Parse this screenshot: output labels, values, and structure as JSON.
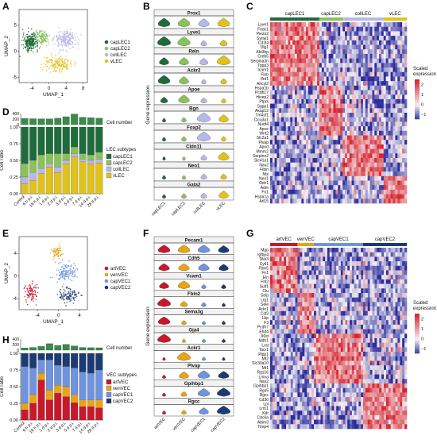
{
  "panels": {
    "A": "A",
    "B": "B",
    "C": "C",
    "D": "D",
    "E": "E",
    "F": "F",
    "G": "G",
    "H": "H"
  },
  "colors": {
    "capLEC1": "#1e6b3c",
    "capLEC2": "#8ac25a",
    "collLEC": "#b8b8e6",
    "vLEC": "#e0c21c",
    "artVEC": "#c8182b",
    "venVEC": "#e8a317",
    "capVEC1": "#6f93de",
    "capVEC2": "#1c3b73",
    "heat_low": "#2c2d9c",
    "heat_mid": "#f2f0f6",
    "heat_high": "#d8262f"
  },
  "chart_data": [
    {
      "panel": "A",
      "type": "scatter",
      "xlabel": "UMAP_1",
      "ylabel": "UMAP_2",
      "xticks": [
        "-4",
        "0",
        "4",
        "8"
      ],
      "yticks": [
        "-5",
        "0",
        "5"
      ],
      "legend": [
        "capLEC1",
        "capLEC2",
        "collLEC",
        "vLEC"
      ],
      "clusters": [
        {
          "name": "capLEC1",
          "center": [
            -4.3,
            1.8
          ],
          "spread": [
            1.8,
            1.6
          ],
          "n": 260
        },
        {
          "name": "capLEC2",
          "center": [
            -1.5,
            2.6
          ],
          "spread": [
            1.6,
            1.3
          ],
          "n": 120
        },
        {
          "name": "collLEC",
          "center": [
            4.0,
            2.2
          ],
          "spread": [
            2.6,
            2.0
          ],
          "n": 220
        },
        {
          "name": "vLEC",
          "center": [
            2.0,
            -2.4
          ],
          "spread": [
            3.2,
            1.4
          ],
          "n": 160
        }
      ]
    },
    {
      "panel": "B",
      "type": "violin",
      "ylabel": "Gene expression",
      "genes": [
        "Prox1",
        "Lyve1",
        "Reln",
        "Ackr2",
        "Apoe",
        "Bgn",
        "Foxp2",
        "Cldn11",
        "Neo1",
        "Gata2"
      ],
      "categories": [
        "capLEC1",
        "capLEC2",
        "collLEC",
        "vLEC"
      ],
      "values": [
        [
          0.8,
          0.8,
          0.7,
          0.8
        ],
        [
          0.9,
          0.85,
          0.3,
          0.4
        ],
        [
          0.6,
          0.6,
          0.5,
          0.9
        ],
        [
          0.8,
          0.6,
          0.2,
          0.3
        ],
        [
          0.4,
          0.7,
          0.3,
          0.2
        ],
        [
          0.1,
          0.2,
          0.9,
          0.6
        ],
        [
          0.1,
          0.2,
          0.9,
          0.2
        ],
        [
          0.05,
          0.05,
          0.3,
          0.7
        ],
        [
          0.1,
          0.1,
          0.3,
          0.3
        ],
        [
          0.1,
          0.2,
          0.3,
          0.6
        ]
      ]
    },
    {
      "panel": "C",
      "type": "heatmap",
      "groups": [
        "capLEC1",
        "capLEC2",
        "collLEC",
        "vLEC"
      ],
      "group_widths": [
        0.36,
        0.17,
        0.3,
        0.17
      ],
      "genes": [
        "Lyve1",
        "Fndc1",
        "Piezo2",
        "Synw1",
        "Cd2l4",
        "Dlg1",
        "Abi3bp",
        "Creb5",
        "Serpina3n",
        "Tppp3",
        "Icam1",
        "Flnb",
        "Ifrd1",
        "Ahcyl2",
        "Hspa1b",
        "Pcdh17",
        "Hivep2",
        "Ptprk",
        "Sgpp1",
        "Akap12",
        "Tm4sf1",
        "Clca3a1",
        "Nudt4",
        "Apoe",
        "Wnt2",
        "Slc2a1",
        "Plvap",
        "Apod",
        "Mmrn2",
        "Serpine2",
        "Slc41a1",
        "Nav2",
        "Fibin",
        "Nts",
        "Neo1",
        "Odc1",
        "Adm",
        "Fn1",
        "Hspa1a",
        "Arl15"
      ],
      "gene_groups": [
        0,
        0,
        0,
        0,
        0,
        0,
        0,
        0,
        0,
        0,
        0,
        0,
        0,
        0,
        1,
        1,
        1,
        1,
        1,
        1,
        1,
        1,
        1,
        1,
        1,
        2,
        2,
        2,
        2,
        2,
        2,
        2,
        2,
        2,
        3,
        3,
        3,
        3,
        3,
        3
      ],
      "legend": {
        "title": "Scaled\nexpression",
        "ticks": [
          "2",
          "1",
          "0",
          "−1"
        ]
      }
    },
    {
      "panel": "D",
      "type": "bar",
      "ylabel": "Cell ratio",
      "top_label": "Cell number",
      "top_ticks": [
        "400",
        "200",
        "0"
      ],
      "categories": [
        "Control",
        "6 h p.i.",
        "16 h p.i.",
        "1 d p.i.",
        "2 d p.i.",
        "3 d p.i.",
        "5 d p.i.",
        "7 d p.i.",
        "14 d p.i.",
        "28 d p.i."
      ],
      "cell_number": [
        250,
        240,
        235,
        230,
        260,
        320,
        430,
        300,
        280,
        260
      ],
      "legend_title": "LEC subtypes",
      "series": [
        {
          "name": "capLEC1",
          "values": [
            0.55,
            0.5,
            0.42,
            0.4,
            0.4,
            0.4,
            0.3,
            0.4,
            0.42,
            0.38
          ]
        },
        {
          "name": "capLEC2",
          "values": [
            0.2,
            0.18,
            0.2,
            0.15,
            0.2,
            0.1,
            0.1,
            0.08,
            0.08,
            0.1
          ]
        },
        {
          "name": "collLEC",
          "values": [
            0.1,
            0.12,
            0.08,
            0.05,
            0.08,
            0.05,
            0.05,
            0.04,
            0.05,
            0.06
          ]
        },
        {
          "name": "vLEC",
          "values": [
            0.15,
            0.2,
            0.3,
            0.4,
            0.32,
            0.45,
            0.55,
            0.48,
            0.45,
            0.46
          ]
        }
      ],
      "yticks": [
        "0.00",
        "0.25",
        "0.50",
        "0.75",
        "1.00"
      ]
    },
    {
      "panel": "E",
      "type": "scatter",
      "xlabel": "UMAP_1",
      "ylabel": "UMAP_2",
      "xticks": [
        "-4",
        "0",
        "4"
      ],
      "yticks": [
        "-4",
        "0",
        "4"
      ],
      "legend": [
        "artVEC",
        "venVEC",
        "capVEC1",
        "capVEC2"
      ],
      "clusters": [
        {
          "name": "artVEC",
          "center": [
            -5.2,
            -3.0
          ],
          "spread": [
            1.2,
            1.6
          ],
          "n": 90
        },
        {
          "name": "venVEC",
          "center": [
            -0.3,
            4.2
          ],
          "spread": [
            1.1,
            1.0
          ],
          "n": 60
        },
        {
          "name": "capVEC1",
          "center": [
            1.4,
            0.6
          ],
          "spread": [
            2.0,
            1.5
          ],
          "n": 140
        },
        {
          "name": "capVEC2",
          "center": [
            2.0,
            -3.4
          ],
          "spread": [
            1.8,
            1.3
          ],
          "n": 110
        }
      ]
    },
    {
      "panel": "F",
      "type": "violin",
      "ylabel": "Gene expression",
      "genes": [
        "Pecam1",
        "Cdh5",
        "Vcam1",
        "Fbln2",
        "Sema3g",
        "Gja4",
        "Ackr1",
        "Plvap",
        "Gpihbp1",
        "Rgcc"
      ],
      "categories": [
        "artVEC",
        "venVEC",
        "capVEC1",
        "capVEC2"
      ],
      "values": [
        [
          0.8,
          0.8,
          0.8,
          0.7
        ],
        [
          0.7,
          0.7,
          0.7,
          0.6
        ],
        [
          0.6,
          0.8,
          0.2,
          0.2
        ],
        [
          0.9,
          0.4,
          0.2,
          0.1
        ],
        [
          0.8,
          0.2,
          0.1,
          0.1
        ],
        [
          0.9,
          0.1,
          0.1,
          0.1
        ],
        [
          0.05,
          0.9,
          0.1,
          0.05
        ],
        [
          0.1,
          0.6,
          0.8,
          0.7
        ],
        [
          0.1,
          0.3,
          0.8,
          0.9
        ],
        [
          0.1,
          0.2,
          0.6,
          0.9
        ]
      ]
    },
    {
      "panel": "G",
      "type": "heatmap",
      "groups": [
        "artVEC",
        "venVEC",
        "capVEC1",
        "capVEC2"
      ],
      "group_widths": [
        0.2,
        0.12,
        0.36,
        0.32
      ],
      "genes": [
        "Mgp",
        "Igfbp4",
        "Dkk3",
        "Cytl1",
        "Fbln5",
        "Fn1",
        "Eln",
        "Fhl2",
        "Sulf1",
        "Clu",
        "Selp",
        "Lrg1",
        "Sele",
        "Ackr1",
        "Csf3",
        "Lbp",
        "F3",
        "Pcdh7",
        "Ehd4",
        "Il6st",
        "Mdh1",
        "Lrat",
        "Tacr1",
        "Plpp1",
        "Mt2",
        "Slc30a10",
        "Mt1",
        "Rgs16",
        "Lmna",
        "Nav2",
        "Gpihbp1",
        "Rgs5",
        "Rgcc",
        "Cd36",
        "Lpl",
        "Lrrn1",
        "Kdr",
        "Cdc6a",
        "Abim3",
        "Timp4"
      ],
      "gene_groups": [
        0,
        0,
        0,
        0,
        0,
        0,
        0,
        0,
        0,
        0,
        1,
        1,
        1,
        1,
        1,
        1,
        1,
        1,
        1,
        2,
        2,
        2,
        2,
        2,
        2,
        2,
        2,
        2,
        2,
        2,
        3,
        3,
        3,
        3,
        3,
        3,
        3,
        3,
        3,
        3
      ],
      "legend": {
        "title": "Scaled\nexpression",
        "ticks": [
          "2",
          "1",
          "0",
          "−1"
        ]
      }
    },
    {
      "panel": "H",
      "type": "bar",
      "ylabel": "Cell ratio",
      "top_label": "Cell number",
      "top_ticks": [
        "400",
        "200",
        "0"
      ],
      "categories": [
        "Control",
        "6 h p.i.",
        "16 h p.i.",
        "1 d p.i.",
        "2 d p.i.",
        "3 d p.i.",
        "5 d p.i.",
        "7 d p.i.",
        "14 d p.i.",
        "28 d p.i."
      ],
      "cell_number": [
        90,
        110,
        150,
        260,
        190,
        230,
        170,
        110,
        100,
        95
      ],
      "legend_title": "VEC subtypes",
      "series": [
        {
          "name": "capVEC2",
          "values": [
            0.2,
            0.22,
            0.1,
            0.1,
            0.18,
            0.2,
            0.22,
            0.28,
            0.3,
            0.25
          ]
        },
        {
          "name": "capVEC1",
          "values": [
            0.55,
            0.4,
            0.2,
            0.45,
            0.3,
            0.3,
            0.4,
            0.42,
            0.4,
            0.45
          ]
        },
        {
          "name": "venVEC",
          "values": [
            0.1,
            0.13,
            0.1,
            0.15,
            0.12,
            0.15,
            0.12,
            0.1,
            0.1,
            0.12
          ]
        },
        {
          "name": "artVEC",
          "values": [
            0.15,
            0.25,
            0.6,
            0.3,
            0.4,
            0.35,
            0.26,
            0.2,
            0.2,
            0.18
          ]
        }
      ],
      "yticks": [
        "0.00",
        "0.25",
        "0.50",
        "0.75",
        "1.00"
      ]
    }
  ]
}
